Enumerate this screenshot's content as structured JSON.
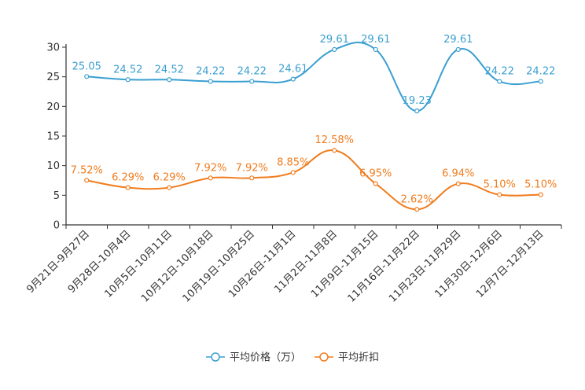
{
  "chart_data": {
    "type": "line",
    "title": "",
    "xlabel": "",
    "ylabel": "",
    "ylim": [
      0,
      30
    ],
    "yticks": [
      0,
      5,
      10,
      15,
      20,
      25,
      30
    ],
    "grid": false,
    "legend_position": "bottom-center",
    "categories": [
      "9月21日-9月27日",
      "9月28日-10月4日",
      "10月5日-10月11日",
      "10月12日-10月18日",
      "10月19日-10月25日",
      "10月26日-11月1日",
      "11月2日-11月8日",
      "11月9日-11月15日",
      "11月16日-11月22日",
      "11月23日-11月29日",
      "11月30日-12月6日",
      "12月7日-12月13日"
    ],
    "series": [
      {
        "name": "平均价格（万）",
        "color": "#3a9fd0",
        "values": [
          25.05,
          24.52,
          24.52,
          24.22,
          24.22,
          24.61,
          29.61,
          29.61,
          19.23,
          29.61,
          24.22,
          24.22
        ],
        "labels": [
          "25.05",
          "24.52",
          "24.52",
          "24.22",
          "24.22",
          "24.61",
          "29.61",
          "29.61",
          "19.23",
          "29.61",
          "24.22",
          "24.22"
        ]
      },
      {
        "name": "平均折扣",
        "color": "#f07c1e",
        "values": [
          7.52,
          6.29,
          6.29,
          7.92,
          7.92,
          8.85,
          12.58,
          6.95,
          2.62,
          6.94,
          5.1,
          5.1
        ],
        "labels": [
          "7.52%",
          "6.29%",
          "6.29%",
          "7.92%",
          "7.92%",
          "8.85%",
          "12.58%",
          "6.95%",
          "2.62%",
          "6.94%",
          "5.10%",
          "5.10%"
        ]
      }
    ]
  }
}
